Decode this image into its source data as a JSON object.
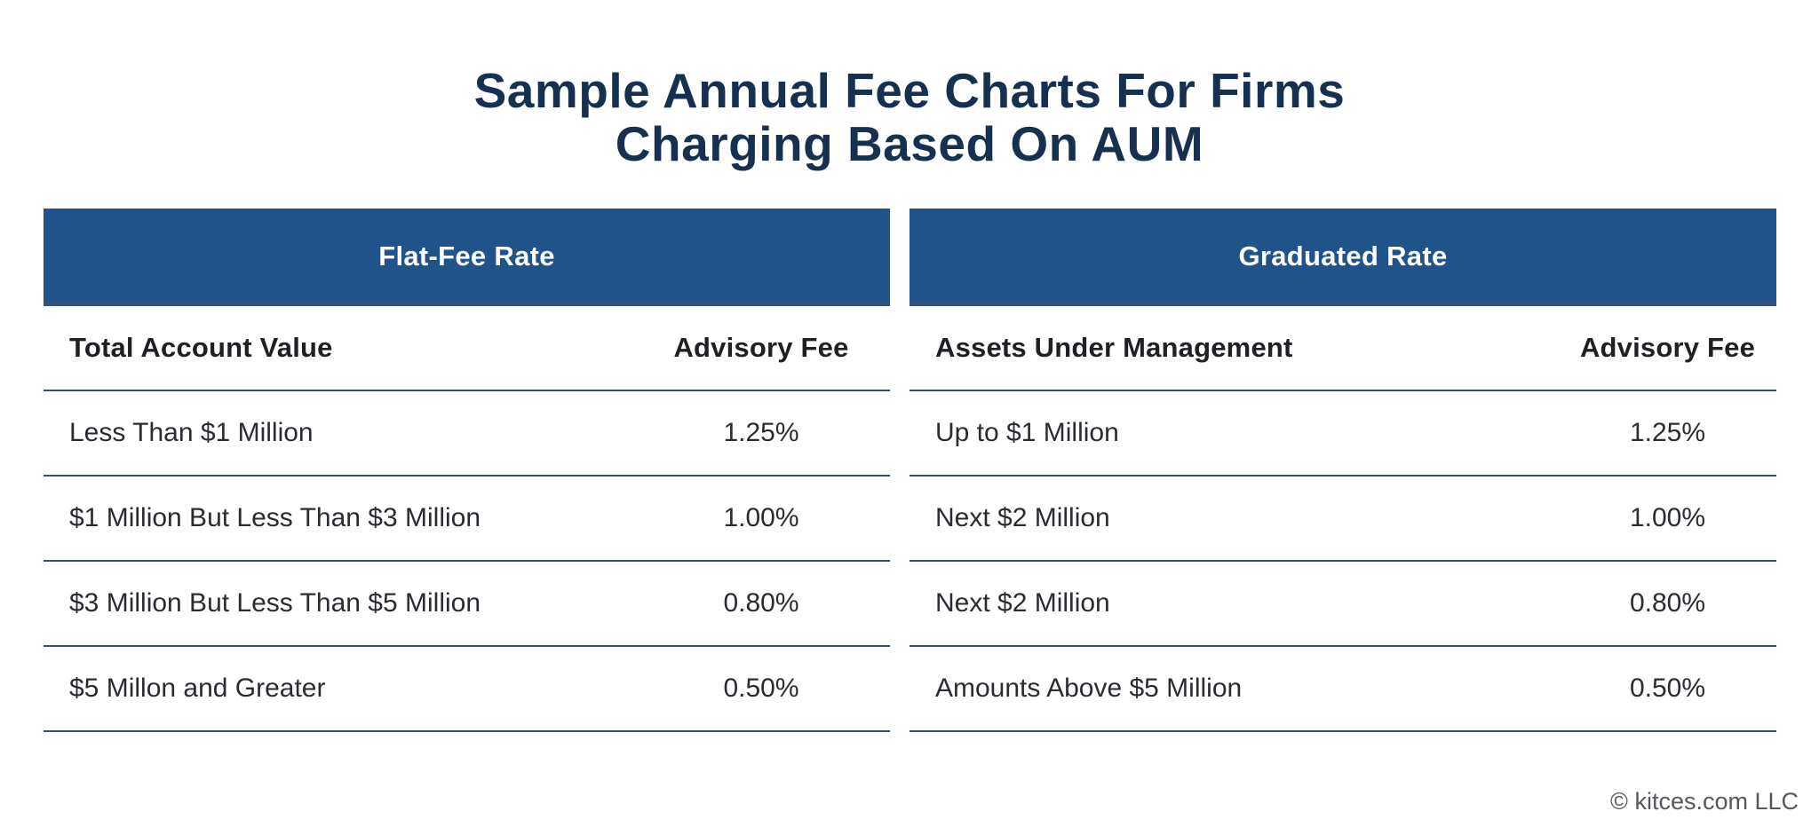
{
  "page": {
    "title_line1": "Sample Annual Fee Charts For Firms",
    "title_line2": "Charging Based On AUM",
    "footer_credit": "© kitces.com LLC"
  },
  "colors": {
    "accent_blue": "#21538b",
    "title_navy": "#173050",
    "divider_navy": "#37506e",
    "bar_bottom_edge": "#3c5068",
    "body_text": "#2a2c31",
    "footer_gray": "#55585c"
  },
  "tables": [
    {
      "header": "Flat-Fee Rate",
      "col_label": "Total Account Value",
      "col_fee": "Advisory Fee",
      "rows": [
        {
          "label": "Less Than $1 Million",
          "fee": "1.25%"
        },
        {
          "label": "$1 Million But Less Than $3 Million",
          "fee": "1.00%"
        },
        {
          "label": "$3 Million But Less Than $5 Million",
          "fee": "0.80%"
        },
        {
          "label": "$5 Millon and Greater",
          "fee": "0.50%"
        }
      ]
    },
    {
      "header": "Graduated Rate",
      "col_label": "Assets Under Management",
      "col_fee": "Advisory Fee",
      "rows": [
        {
          "label": "Up to $1 Million",
          "fee": "1.25%"
        },
        {
          "label": "Next $2 Million",
          "fee": "1.00%"
        },
        {
          "label": "Next $2 Million",
          "fee": "0.80%"
        },
        {
          "label": "Amounts Above $5 Million",
          "fee": "0.50%"
        }
      ]
    }
  ],
  "chart_data": [
    {
      "type": "table",
      "title": "Flat-Fee Rate",
      "columns": [
        "Total Account Value",
        "Advisory Fee"
      ],
      "rows": [
        [
          "Less Than $1 Million",
          "1.25%"
        ],
        [
          "$1 Million But Less Than $3 Million",
          "1.00%"
        ],
        [
          "$3 Million But Less Than $5 Million",
          "0.80%"
        ],
        [
          "$5 Millon and Greater",
          "0.50%"
        ]
      ]
    },
    {
      "type": "table",
      "title": "Graduated Rate",
      "columns": [
        "Assets Under Management",
        "Advisory Fee"
      ],
      "rows": [
        [
          "Up to $1 Million",
          "1.25%"
        ],
        [
          "Next $2 Million",
          "1.00%"
        ],
        [
          "Next $2 Million",
          "0.80%"
        ],
        [
          "Amounts Above $5 Million",
          "0.50%"
        ]
      ]
    }
  ]
}
